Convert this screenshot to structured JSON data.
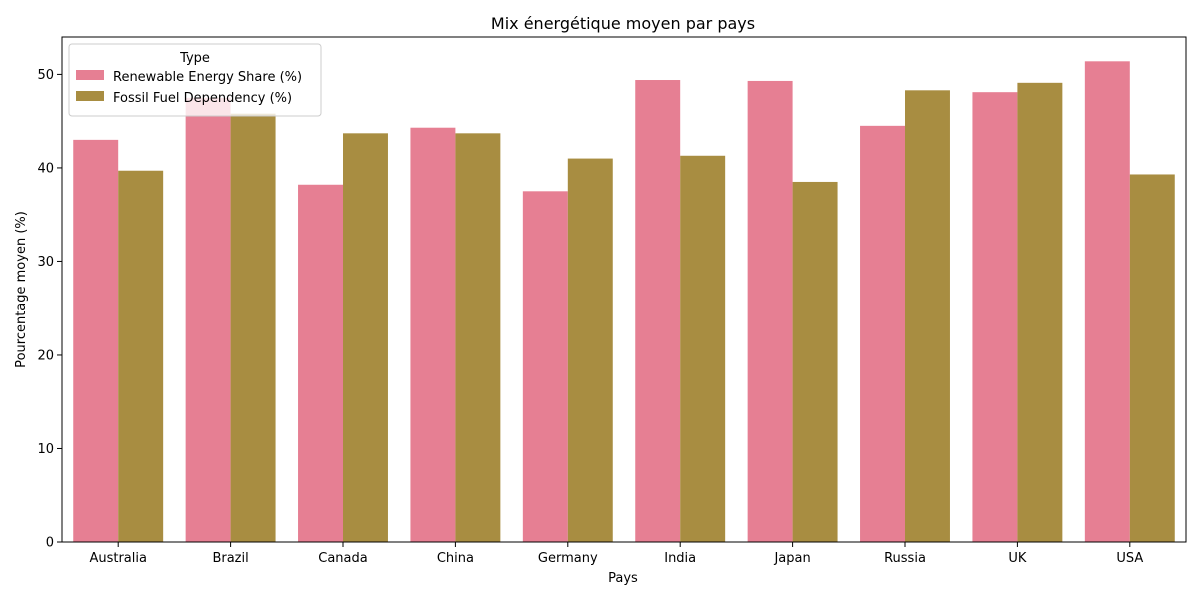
{
  "chart_data": {
    "type": "bar",
    "title": "Mix énergétique moyen par pays",
    "xlabel": "Pays",
    "ylabel": "Pourcentage moyen (%)",
    "ylim": [
      0,
      54
    ],
    "yticks": [
      0,
      10,
      20,
      30,
      40,
      50
    ],
    "grid": false,
    "legend": {
      "title": "Type",
      "placement": "top-left"
    },
    "categories": [
      "Australia",
      "Brazil",
      "Canada",
      "China",
      "Germany",
      "India",
      "Japan",
      "Russia",
      "UK",
      "USA"
    ],
    "series": [
      {
        "name": "Renewable Energy Share (%)",
        "color": "#e67f93",
        "values": [
          43.0,
          47.5,
          38.2,
          44.3,
          37.5,
          49.4,
          49.3,
          44.5,
          48.1,
          51.4
        ]
      },
      {
        "name": "Fossil Fuel Dependency (%)",
        "color": "#a88d41",
        "values": [
          39.7,
          45.8,
          43.7,
          43.7,
          41.0,
          41.3,
          38.5,
          48.3,
          49.1,
          39.3
        ]
      }
    ]
  }
}
